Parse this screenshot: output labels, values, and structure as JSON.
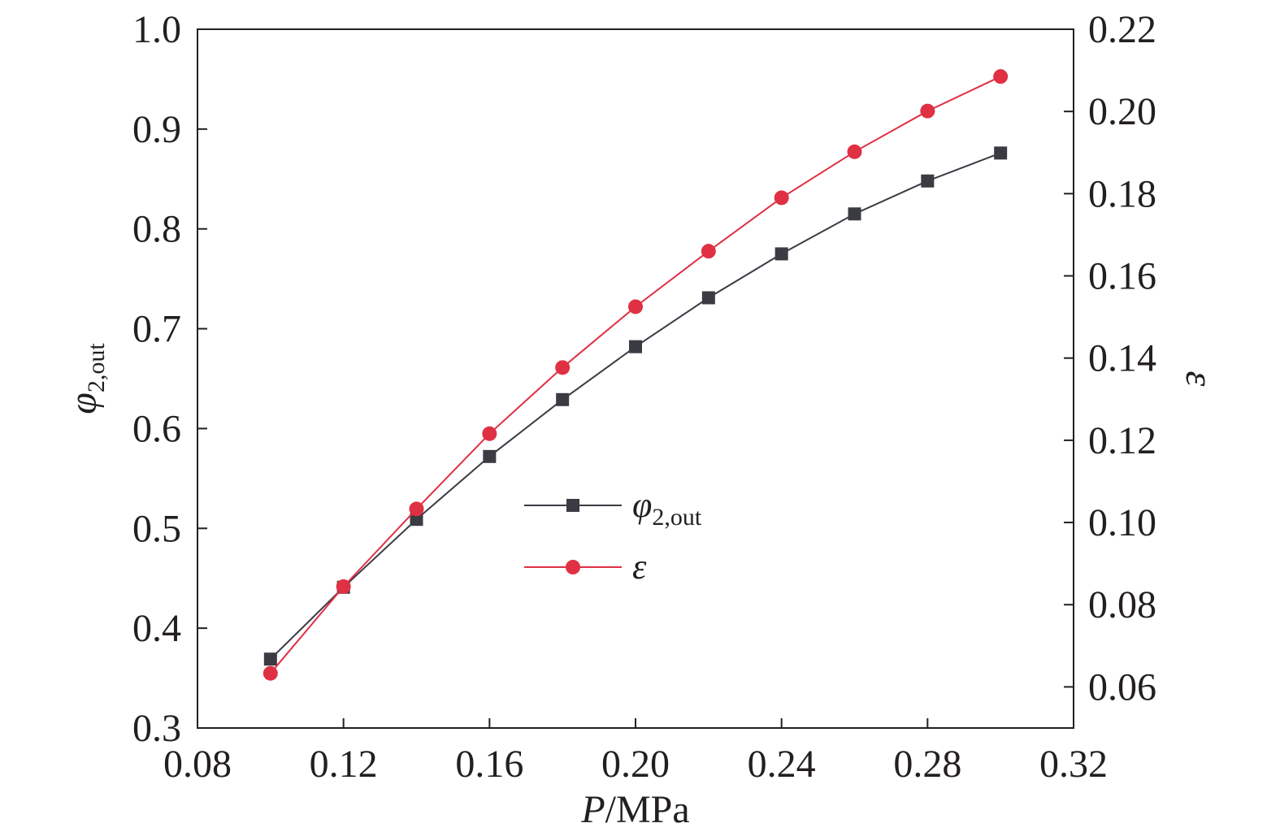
{
  "chart_data": {
    "type": "line",
    "xlabel": {
      "var": "P",
      "unit": "/MPa"
    },
    "ylabel_left": {
      "var": "φ",
      "sub": "2,out"
    },
    "ylabel_right": {
      "var": "ε"
    },
    "xlim": [
      0.08,
      0.32
    ],
    "ylim_left": [
      0.3,
      1.0
    ],
    "ylim_right": [
      0.05,
      0.22
    ],
    "x_ticks": [
      "0.08",
      "0.12",
      "0.16",
      "0.20",
      "0.24",
      "0.28",
      "0.32"
    ],
    "y_left_ticks": [
      "0.3",
      "0.4",
      "0.5",
      "0.6",
      "0.7",
      "0.8",
      "0.9",
      "1.0"
    ],
    "y_right_ticks": [
      "0.06",
      "0.08",
      "0.10",
      "0.12",
      "0.14",
      "0.16",
      "0.18",
      "0.20",
      "0.22"
    ],
    "x": [
      0.1,
      0.12,
      0.14,
      0.16,
      0.18,
      0.2,
      0.22,
      0.24,
      0.26,
      0.28,
      0.3
    ],
    "series": [
      {
        "name": "φ2,out",
        "label_var": "φ",
        "label_sub": "2,out",
        "axis": "left",
        "marker": "square",
        "color": "#3b3b44",
        "values": [
          0.369,
          0.441,
          0.509,
          0.572,
          0.629,
          0.682,
          0.731,
          0.775,
          0.815,
          0.848,
          0.876
        ]
      },
      {
        "name": "ε",
        "label_var": "ε",
        "label_sub": "",
        "axis": "right",
        "marker": "circle",
        "color": "#e03043",
        "values": [
          0.0633,
          0.0844,
          0.1033,
          0.1216,
          0.1377,
          0.1525,
          0.166,
          0.179,
          0.1902,
          0.2001,
          0.2085
        ]
      }
    ],
    "grid": false,
    "legend_position": "center"
  }
}
